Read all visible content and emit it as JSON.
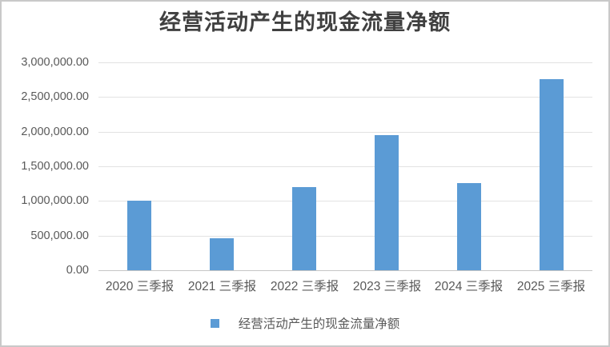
{
  "chart_data": {
    "type": "bar",
    "title": "经营活动产生的现金流量净额",
    "series": [
      {
        "name": "经营活动产生的现金流量净额",
        "values": [
          1000000,
          460000,
          1200000,
          1950000,
          1255000,
          2760000
        ]
      }
    ],
    "categories": [
      "2020 三季报",
      "2021 三季报",
      "2022 三季报",
      "2023 三季报",
      "2024 三季报",
      "2025 三季报"
    ],
    "xlabel": "",
    "ylabel": "",
    "ylim": [
      0,
      3000000
    ],
    "y_tick_interval": 500000,
    "y_tick_labels_top_to_bottom": [
      "3,000,000.00",
      "2,500,000.00",
      "2,000,000.00",
      "1,500,000.00",
      "1,000,000.00",
      "500,000.00",
      "0.00"
    ],
    "grid": "horizontal",
    "legend_position": "bottom"
  },
  "legend": {
    "label": "经营活动产生的现金流量净额"
  },
  "colors": {
    "bar_fill": "#5B9BD5",
    "legend_swatch": "#5B9BD5",
    "gridline": "#E2E2E2",
    "axis_line": "#C6C6C6",
    "tick_label": "#595959",
    "title_text": "#404040",
    "frame_border": "#C9C9C9",
    "background": "#FFFFFF"
  }
}
